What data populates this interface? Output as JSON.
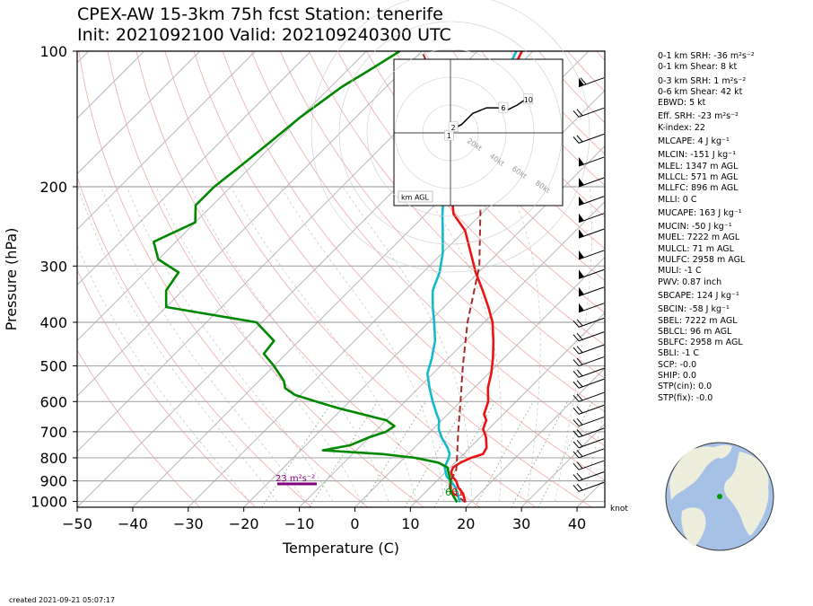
{
  "header": {
    "line1": "CPEX-AW 15-3km  75h fcst  Station: tenerife",
    "line2": "Init: 2021092100  Valid: 202109240300 UTC"
  },
  "footer": {
    "created": "created 2021-09-21 05:07:17"
  },
  "indices": [
    "0-1 km SRH: -36 m²s⁻²",
    "0-1 km Shear: 8 kt",
    "0-3 km SRH: 1 m²s⁻²",
    "0-6 km Shear: 42 kt",
    "EBWD: 5 kt",
    "Eff. SRH: -23 m²s⁻²",
    "K-index: 22",
    "MLCAPE: 4 J kg⁻¹",
    "MLCIN: -151 J kg⁻¹",
    "MLEL: 1347 m AGL",
    "MLLCL: 571 m AGL",
    "MLLFC: 896 m AGL",
    "MLLI: 0 C",
    "MUCAPE: 163 J kg⁻¹",
    "MUCIN: -50 J kg⁻¹",
    "MUEL: 7222 m AGL",
    "MULCL: 71 m AGL",
    "MULFC: 2958 m AGL",
    "MULI: -1 C",
    "PWV: 0.87 inch",
    "SBCAPE: 124 J kg⁻¹",
    "SBCIN: -58 J kg⁻¹",
    "SBEL: 7222 m AGL",
    "SBLCL: 96 m AGL",
    "SBLFC: 2958 m AGL",
    "SBLI: -1 C",
    "SCP: -0.0",
    "SHIP: 0.0",
    "STP(cin): 0.0",
    "STP(fix): -0.0"
  ],
  "chart_data": {
    "type": "line",
    "xlabel": "Temperature (C)",
    "ylabel": "Pressure (hPa)",
    "xlim": [
      -50,
      45
    ],
    "ylim": [
      1030,
      100
    ],
    "y_scale": "log",
    "skew": "45-degree skew-T",
    "x_ticks": [
      -50,
      -40,
      -30,
      -20,
      -10,
      0,
      10,
      20,
      30,
      40
    ],
    "y_ticks": [
      100,
      200,
      300,
      400,
      500,
      600,
      700,
      800,
      900,
      1000
    ],
    "grid": true,
    "series": [
      {
        "color": "#ee1111",
        "points": [
          [
            1004,
            19
          ],
          [
            960,
            17
          ],
          [
            930,
            15
          ],
          [
            900,
            13.5
          ],
          [
            880,
            12
          ],
          [
            860,
            11
          ],
          [
            840,
            10.5
          ],
          [
            820,
            11
          ],
          [
            800,
            12
          ],
          [
            785,
            13.5
          ],
          [
            760,
            13
          ],
          [
            720,
            11
          ],
          [
            690,
            9
          ],
          [
            660,
            8
          ],
          [
            640,
            6.5
          ],
          [
            600,
            5
          ],
          [
            560,
            2.5
          ],
          [
            520,
            0.5
          ],
          [
            480,
            -2
          ],
          [
            440,
            -5
          ],
          [
            400,
            -8.5
          ],
          [
            370,
            -12
          ],
          [
            340,
            -16
          ],
          [
            310,
            -20.5
          ],
          [
            280,
            -25
          ],
          [
            250,
            -30
          ],
          [
            230,
            -35
          ],
          [
            210,
            -38.5
          ],
          [
            190,
            -41
          ],
          [
            170,
            -43
          ],
          [
            150,
            -44.5
          ],
          [
            130,
            -47
          ],
          [
            115,
            -49.5
          ],
          [
            100,
            -52
          ]
        ]
      },
      {
        "color": "#11bbcc",
        "points": [
          [
            1004,
            18
          ],
          [
            960,
            16
          ],
          [
            930,
            14.5
          ],
          [
            900,
            12.5
          ],
          [
            880,
            11
          ],
          [
            860,
            10
          ],
          [
            840,
            9
          ],
          [
            820,
            8.5
          ],
          [
            800,
            8
          ],
          [
            785,
            7.5
          ],
          [
            760,
            6
          ],
          [
            720,
            3
          ],
          [
            690,
            1
          ],
          [
            660,
            -0.5
          ],
          [
            640,
            -2
          ],
          [
            600,
            -5
          ],
          [
            560,
            -8
          ],
          [
            520,
            -11
          ],
          [
            480,
            -13
          ],
          [
            440,
            -15.5
          ],
          [
            400,
            -19
          ],
          [
            370,
            -22
          ],
          [
            340,
            -25
          ],
          [
            310,
            -27
          ],
          [
            280,
            -30
          ],
          [
            250,
            -34
          ],
          [
            230,
            -37
          ],
          [
            210,
            -40
          ],
          [
            190,
            -42
          ],
          [
            170,
            -44
          ],
          [
            150,
            -46
          ],
          [
            130,
            -48.5
          ],
          [
            115,
            -50.5
          ],
          [
            100,
            -53
          ]
        ]
      },
      {
        "color": "#008800",
        "points": [
          [
            1004,
            17.5
          ],
          [
            960,
            15
          ],
          [
            930,
            13.5
          ],
          [
            900,
            12.5
          ],
          [
            880,
            11.5
          ],
          [
            860,
            10.5
          ],
          [
            840,
            9.5
          ],
          [
            820,
            7
          ],
          [
            800,
            2
          ],
          [
            785,
            -4.5
          ],
          [
            770,
            -16
          ],
          [
            750,
            -12
          ],
          [
            720,
            -10
          ],
          [
            700,
            -8
          ],
          [
            680,
            -7.5
          ],
          [
            660,
            -10
          ],
          [
            620,
            -21
          ],
          [
            600,
            -26
          ],
          [
            580,
            -31
          ],
          [
            560,
            -34
          ],
          [
            540,
            -35.5
          ],
          [
            500,
            -40
          ],
          [
            470,
            -44
          ],
          [
            440,
            -44.5
          ],
          [
            400,
            -51
          ],
          [
            370,
            -70
          ],
          [
            340,
            -73
          ],
          [
            310,
            -74
          ],
          [
            290,
            -80
          ],
          [
            265,
            -84
          ],
          [
            240,
            -80
          ],
          [
            220,
            -83
          ],
          [
            200,
            -83
          ],
          [
            180,
            -82
          ],
          [
            160,
            -81
          ],
          [
            140,
            -80
          ],
          [
            120,
            -78
          ],
          [
            110,
            -76
          ],
          [
            100,
            -74
          ]
        ]
      },
      {
        "color": "#a52a2a",
        "dashed": true,
        "points": [
          [
            1004,
            19
          ],
          [
            950,
            14.5
          ],
          [
            900,
            12.5
          ],
          [
            850,
            11.5
          ],
          [
            800,
            9.5
          ],
          [
            700,
            5
          ],
          [
            600,
            0
          ],
          [
            500,
            -6
          ],
          [
            400,
            -13
          ],
          [
            300,
            -21
          ],
          [
            200,
            -35
          ],
          [
            100,
            -70
          ]
        ]
      }
    ],
    "annotations": {
      "srh_label": "23 m²s⁻²",
      "surface_dewpoint": "60",
      "surface_temp": "61",
      "wind_units": "knot"
    },
    "hodograph": {
      "label": "km AGL",
      "ring_labels": [
        "20kt",
        "40kt",
        "60kt",
        "80kt"
      ],
      "points": [
        [
          -2,
          -2
        ],
        [
          0,
          1
        ],
        [
          4,
          3
        ],
        [
          8,
          7
        ],
        [
          13,
          9
        ],
        [
          17,
          9
        ],
        [
          20,
          8
        ],
        [
          24,
          10
        ],
        [
          27,
          12
        ]
      ],
      "height_markers": [
        {
          "label": "1",
          "u": -0.5,
          "v": -1
        },
        {
          "label": "2",
          "u": 1,
          "v": 2
        },
        {
          "label": "6",
          "u": 19,
          "v": 9
        },
        {
          "label": "10",
          "u": 28,
          "v": 12
        }
      ]
    },
    "wind_barbs": [
      {
        "p": 120,
        "kind": "pennant-line"
      },
      {
        "p": 140,
        "kind": "line"
      },
      {
        "p": 160,
        "kind": "line"
      },
      {
        "p": 180,
        "kind": "pennant"
      },
      {
        "p": 200,
        "kind": "pennant"
      },
      {
        "p": 220,
        "kind": "pennant"
      },
      {
        "p": 240,
        "kind": "pennant"
      },
      {
        "p": 260,
        "kind": "pennant"
      },
      {
        "p": 290,
        "kind": "pennant"
      },
      {
        "p": 320,
        "kind": "pennant"
      },
      {
        "p": 350,
        "kind": "pennant"
      },
      {
        "p": 380,
        "kind": "pennant"
      },
      {
        "p": 410,
        "kind": "line"
      },
      {
        "p": 440,
        "kind": "line"
      },
      {
        "p": 470,
        "kind": "line"
      },
      {
        "p": 500,
        "kind": "line"
      },
      {
        "p": 530,
        "kind": "line"
      },
      {
        "p": 560,
        "kind": "line"
      },
      {
        "p": 600,
        "kind": "line"
      },
      {
        "p": 640,
        "kind": "line"
      },
      {
        "p": 680,
        "kind": "line"
      },
      {
        "p": 720,
        "kind": "line"
      },
      {
        "p": 760,
        "kind": "line"
      },
      {
        "p": 800,
        "kind": "line"
      },
      {
        "p": 850,
        "kind": "line"
      },
      {
        "p": 900,
        "kind": "line"
      },
      {
        "p": 950,
        "kind": "line"
      }
    ],
    "colors": {
      "temperature": "#ee1111",
      "dewpoint": "#008800",
      "wetbulb": "#11bbcc",
      "parcel": "#a52a2a",
      "srh_bar": "#800080"
    }
  }
}
